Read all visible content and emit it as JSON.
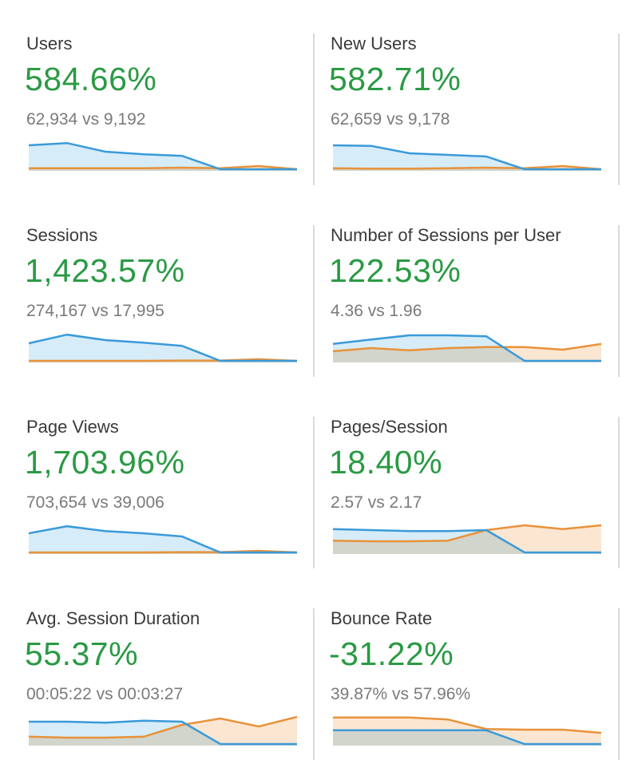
{
  "colors": {
    "current": "#3a9ad9",
    "previous": "#e8923a",
    "positive": "#2a9a44"
  },
  "metrics": [
    {
      "label": "Users",
      "change": "584.66%",
      "comparison": "62,934 vs 9,192",
      "current": [
        0.8,
        0.87,
        0.6,
        0.52,
        0.47,
        0.05,
        0.05,
        0.05
      ],
      "previous": [
        0.08,
        0.08,
        0.08,
        0.08,
        0.1,
        0.08,
        0.15,
        0.05
      ]
    },
    {
      "label": "New Users",
      "change": "582.71%",
      "comparison": "62,659 vs 9,178",
      "current": [
        0.8,
        0.78,
        0.55,
        0.5,
        0.45,
        0.05,
        0.05,
        0.05
      ],
      "previous": [
        0.08,
        0.07,
        0.07,
        0.08,
        0.1,
        0.08,
        0.15,
        0.05
      ]
    },
    {
      "label": "Sessions",
      "change": "1,423.57%",
      "comparison": "274,167 vs 17,995",
      "current": [
        0.6,
        0.87,
        0.7,
        0.62,
        0.52,
        0.05,
        0.05,
        0.05
      ],
      "previous": [
        0.05,
        0.05,
        0.05,
        0.05,
        0.06,
        0.06,
        0.1,
        0.05
      ]
    },
    {
      "label": "Number of Sessions per User",
      "change": "122.53%",
      "comparison": "4.36 vs 1.96",
      "current": [
        0.58,
        0.72,
        0.85,
        0.85,
        0.82,
        0.05,
        0.05,
        0.05
      ],
      "previous": [
        0.35,
        0.45,
        0.38,
        0.45,
        0.48,
        0.48,
        0.4,
        0.58
      ]
    },
    {
      "label": "Page Views",
      "change": "1,703.96%",
      "comparison": "703,654 vs 39,006",
      "current": [
        0.65,
        0.87,
        0.72,
        0.65,
        0.55,
        0.05,
        0.05,
        0.05
      ],
      "previous": [
        0.05,
        0.05,
        0.05,
        0.05,
        0.06,
        0.06,
        0.1,
        0.05
      ]
    },
    {
      "label": "Pages/Session",
      "change": "18.40%",
      "comparison": "2.57 vs 2.17",
      "current": [
        0.78,
        0.75,
        0.72,
        0.72,
        0.75,
        0.05,
        0.05,
        0.05
      ],
      "previous": [
        0.42,
        0.4,
        0.4,
        0.42,
        0.75,
        0.9,
        0.78,
        0.9
      ]
    },
    {
      "label": "Avg. Session Duration",
      "change": "55.37%",
      "comparison": "00:05:22 vs 00:03:27",
      "current": [
        0.75,
        0.75,
        0.72,
        0.78,
        0.75,
        0.05,
        0.05,
        0.05
      ],
      "previous": [
        0.28,
        0.25,
        0.25,
        0.28,
        0.65,
        0.85,
        0.6,
        0.9
      ]
    },
    {
      "label": "Bounce Rate",
      "change": "-31.22%",
      "comparison": "39.87% vs 57.96%",
      "current": [
        0.48,
        0.48,
        0.48,
        0.48,
        0.48,
        0.05,
        0.05,
        0.05
      ],
      "previous": [
        0.88,
        0.88,
        0.88,
        0.82,
        0.52,
        0.5,
        0.5,
        0.4
      ]
    }
  ]
}
